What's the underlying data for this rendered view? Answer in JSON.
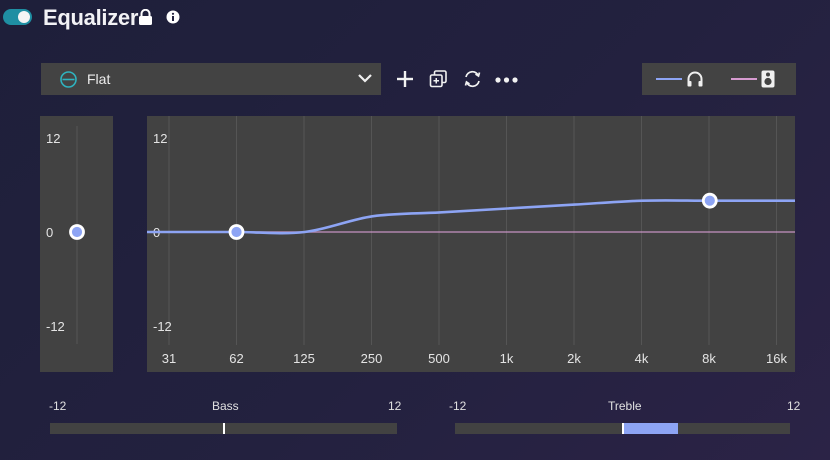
{
  "header": {
    "title": "Equalizer",
    "enabled": true,
    "icons": [
      "toggle-switch",
      "lock-icon",
      "info-icon"
    ]
  },
  "preset": {
    "label": "Flat",
    "icon": "flat-preset-icon"
  },
  "toolbar": {
    "icons": [
      "plus-icon",
      "duplicate-icon",
      "swap-icon",
      "more-icon"
    ]
  },
  "outputs": [
    {
      "name": "headphones",
      "icon": "headphones-icon",
      "color": "#8da4f4"
    },
    {
      "name": "speaker",
      "icon": "speaker-icon",
      "color": "#d69bd0"
    }
  ],
  "colors": {
    "accent": "#8da4f4",
    "secondary_curve": "#d69bd0",
    "toggle": "#1f8fa3",
    "panel": "#424242"
  },
  "preamp": {
    "y_labels": [
      "12",
      "0",
      "-12"
    ],
    "value": 0
  },
  "chart_data": {
    "type": "line",
    "x_labels": [
      "31",
      "62",
      "125",
      "250",
      "500",
      "1k",
      "2k",
      "4k",
      "8k",
      "16k"
    ],
    "y_labels": [
      "12",
      "0",
      "-12"
    ],
    "ylim": [
      -12,
      12
    ],
    "x_scale": "log",
    "grid": true,
    "series": [
      {
        "color": "#8da4f4",
        "x": [
          31,
          62,
          125,
          250,
          500,
          1000,
          2000,
          4000,
          8000,
          16000
        ],
        "values": [
          0,
          0,
          0,
          2.0,
          2.5,
          3.0,
          3.5,
          4.0,
          4.0,
          4.0
        ]
      },
      {
        "color": "#d69bd0",
        "x": [
          31,
          62,
          125,
          250,
          500,
          1000,
          2000,
          4000,
          8000,
          16000
        ],
        "values": [
          0,
          0,
          0,
          0,
          0,
          0,
          0,
          0,
          0,
          0
        ]
      }
    ],
    "handles": [
      {
        "x": 62,
        "value": 0
      },
      {
        "x": 8000,
        "value": 4.0
      }
    ]
  },
  "bass": {
    "label": "Bass",
    "min_label": "-12",
    "max_label": "12",
    "value": 0
  },
  "treble": {
    "label": "Treble",
    "min_label": "-12",
    "max_label": "12",
    "value": 0,
    "highlight_range": [
      0,
      4
    ]
  }
}
